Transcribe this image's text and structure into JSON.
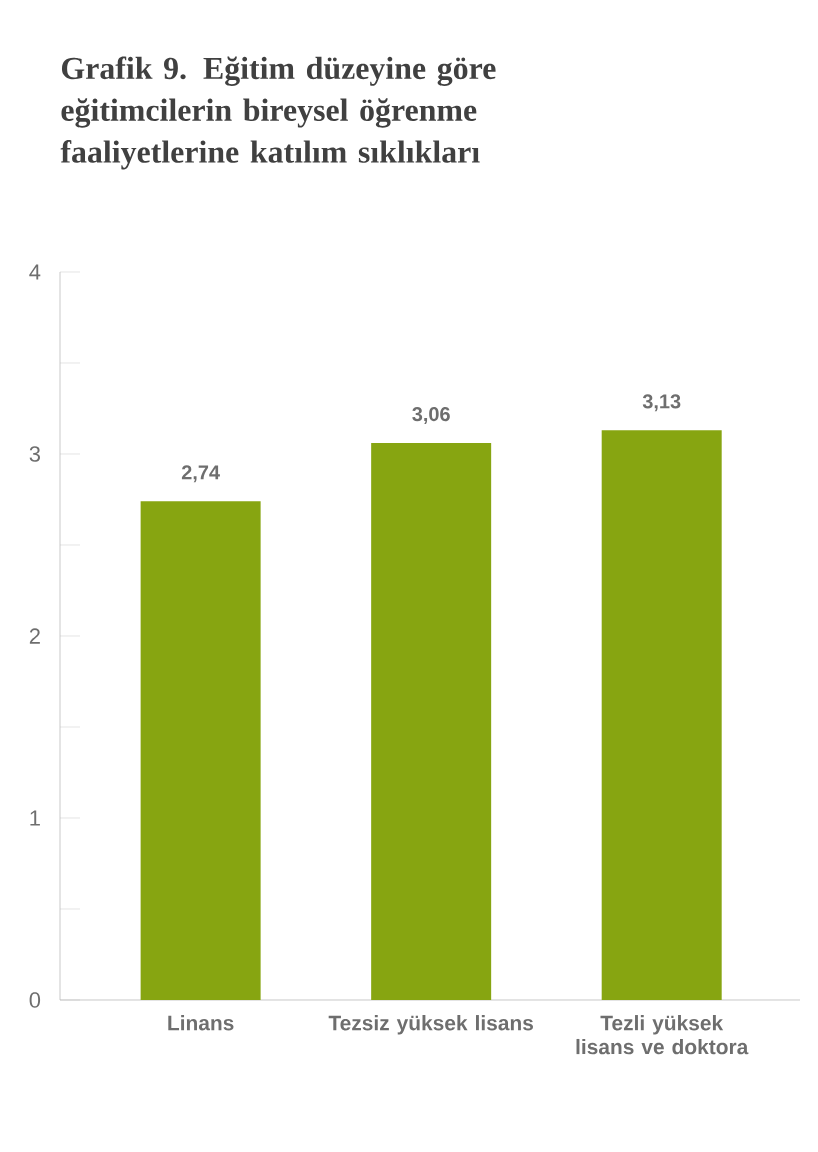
{
  "chart_data": {
    "type": "bar",
    "title": "Grafik 9. Eğitim düzeyine göre eğitimcilerin bireysel öğrenme faaliyetlerine katılım sıklıkları",
    "categories": [
      "Linans",
      "Tezsiz yüksek lisans",
      "Tezli yüksek lisans ve doktora"
    ],
    "values": [
      2.74,
      3.06,
      3.13
    ],
    "value_labels": [
      "2,74",
      "3,06",
      "3,13"
    ],
    "color": "#87a511",
    "ylim": [
      0,
      4
    ],
    "yticks": [
      0,
      {
        "value": 0.5,
        "label": null
      },
      1,
      {
        "value": 1.5,
        "label": null
      },
      2,
      {
        "value": 2.5,
        "label": null
      },
      3,
      {
        "value": 3.5,
        "label": null
      },
      4
    ],
    "grid": false
  }
}
